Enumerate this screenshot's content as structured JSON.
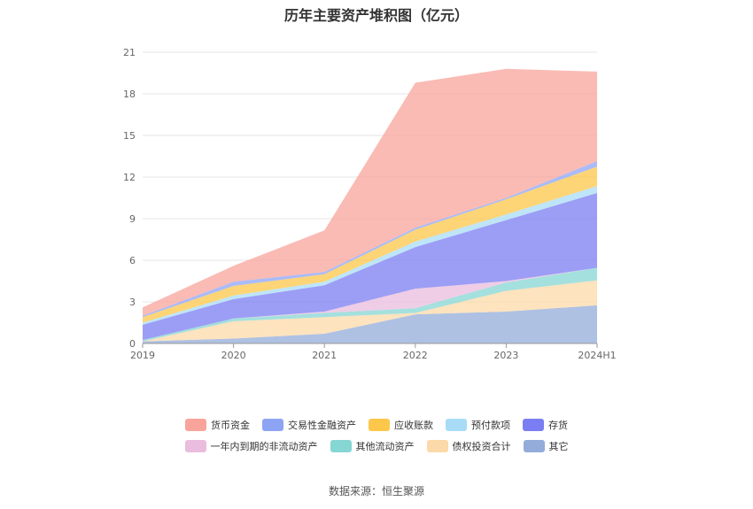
{
  "title": "历年主要资产堆积图（亿元）",
  "source": "数据来源：恒生聚源",
  "chart_data": {
    "type": "area",
    "stacked": true,
    "title": "历年主要资产堆积图（亿元）",
    "categories": [
      "2019",
      "2020",
      "2021",
      "2022",
      "2023",
      "2024H1"
    ],
    "ylim": [
      0,
      21
    ],
    "yticks": [
      0,
      3,
      6,
      9,
      12,
      15,
      18,
      21
    ],
    "grid": true,
    "legend_position": "bottom",
    "series": [
      {
        "name": "其它",
        "color": "#93acd9",
        "values": [
          0.15,
          0.35,
          0.7,
          2.1,
          2.3,
          2.75
        ]
      },
      {
        "name": "债权投资合计",
        "color": "#fcd9a8",
        "values": [
          0.0,
          1.25,
          1.2,
          0.1,
          1.5,
          1.8
        ]
      },
      {
        "name": "其他流动资产",
        "color": "#86d6d3",
        "values": [
          0.1,
          0.2,
          0.3,
          0.35,
          0.6,
          0.9
        ]
      },
      {
        "name": "一年内到期的非流动资产",
        "color": "#eabcdd",
        "values": [
          0.0,
          0.0,
          0.1,
          1.4,
          0.1,
          0.0
        ]
      },
      {
        "name": "存货",
        "color": "#7b7ef2",
        "values": [
          1.1,
          1.4,
          1.9,
          3.0,
          4.4,
          5.4
        ]
      },
      {
        "name": "预付款项",
        "color": "#a8dcf6",
        "values": [
          0.15,
          0.25,
          0.25,
          0.4,
          0.4,
          0.5
        ]
      },
      {
        "name": "应收账款",
        "color": "#fcc74a",
        "values": [
          0.4,
          0.7,
          0.55,
          0.85,
          1.1,
          1.4
        ]
      },
      {
        "name": "交易性金融资产",
        "color": "#8da4f5",
        "values": [
          0.1,
          0.3,
          0.15,
          0.15,
          0.1,
          0.4
        ]
      },
      {
        "name": "货币资金",
        "color": "#f8a49b",
        "values": [
          0.6,
          1.15,
          3.0,
          10.45,
          9.3,
          6.45
        ]
      }
    ],
    "legend_order": [
      "货币资金",
      "交易性金融资产",
      "应收账款",
      "预付款项",
      "存货",
      "一年内到期的非流动资产",
      "其他流动资产",
      "债权投资合计",
      "其它"
    ]
  }
}
